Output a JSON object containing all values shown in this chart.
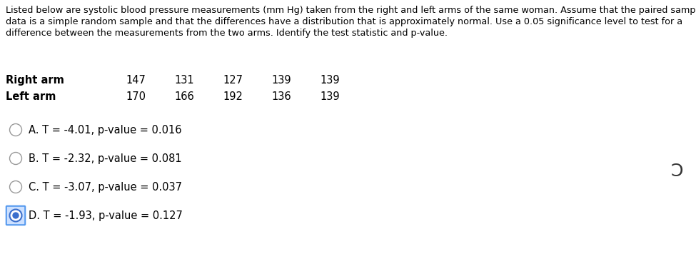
{
  "paragraph_lines": [
    "Listed below are systolic blood pressure measurements (mm Hg) taken from the right and left arms of the same woman. Assume that the paired sample",
    "data is a simple random sample and that the differences have a distribution that is approximately normal. Use a 0.05 significance level to test for a",
    "difference between the measurements from the two arms. Identify the test statistic and p-value."
  ],
  "table_label_right": "Right arm",
  "table_label_left": "Left arm",
  "right_arm": [
    "147",
    "131",
    "127",
    "139",
    "139"
  ],
  "left_arm": [
    "170",
    "166",
    "192",
    "136",
    "139"
  ],
  "options": [
    "A. T = -4.01, p-value = 0.016",
    "B. T = -2.32, p-value = 0.081",
    "C. T = -3.07, p-value = 0.037",
    "D. T = -1.93, p-value = 0.127"
  ],
  "selected_option": 3,
  "bg_color": "#ffffff",
  "text_color": "#000000",
  "option_text_color": "#000000",
  "selected_circle_fill": "#3b6fcc",
  "selected_circle_edge": "#5599ee",
  "selected_box_fill": "#cce0ff",
  "unselected_circle_edge": "#999999",
  "font_size_paragraph": 9.2,
  "font_size_table_label": 10.5,
  "font_size_table_values": 10.5,
  "font_size_options": 10.5,
  "symbol": "Ɔ",
  "symbol_fontsize": 20
}
